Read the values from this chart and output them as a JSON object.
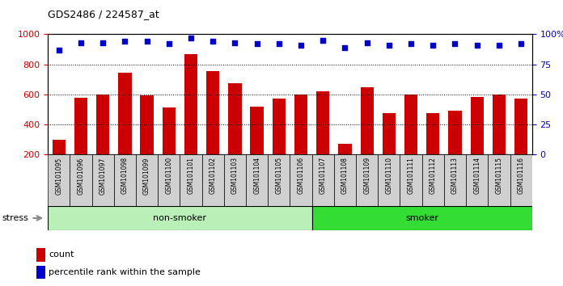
{
  "title": "GDS2486 / 224587_at",
  "categories": [
    "GSM101095",
    "GSM101096",
    "GSM101097",
    "GSM101098",
    "GSM101099",
    "GSM101100",
    "GSM101101",
    "GSM101102",
    "GSM101103",
    "GSM101104",
    "GSM101105",
    "GSM101106",
    "GSM101107",
    "GSM101108",
    "GSM101109",
    "GSM101110",
    "GSM101111",
    "GSM101112",
    "GSM101113",
    "GSM101114",
    "GSM101115",
    "GSM101116"
  ],
  "bar_values": [
    300,
    575,
    600,
    745,
    595,
    515,
    870,
    755,
    675,
    520,
    570,
    600,
    620,
    270,
    650,
    475,
    600,
    475,
    490,
    585,
    600,
    570
  ],
  "percentile_values": [
    87,
    93,
    93,
    94,
    94,
    92,
    97,
    94,
    93,
    92,
    92,
    91,
    95,
    89,
    93,
    91,
    92,
    91,
    92,
    91,
    91,
    92
  ],
  "bar_color": "#cc0000",
  "dot_color": "#0000cc",
  "non_smoker_count": 12,
  "smoker_count": 10,
  "non_smoker_color": "#b8f0b8",
  "smoker_color": "#33dd33",
  "group_label_non_smoker": "non-smoker",
  "group_label_smoker": "smoker",
  "stress_label": "stress",
  "ylim_left": [
    200,
    1000
  ],
  "ylim_right": [
    0,
    100
  ],
  "yticks_left": [
    200,
    400,
    600,
    800,
    1000
  ],
  "yticks_right": [
    0,
    25,
    50,
    75,
    100
  ],
  "background_color": "#ffffff",
  "tick_bg_color": "#d0d0d0",
  "legend_count_label": "count",
  "legend_pct_label": "percentile rank within the sample"
}
